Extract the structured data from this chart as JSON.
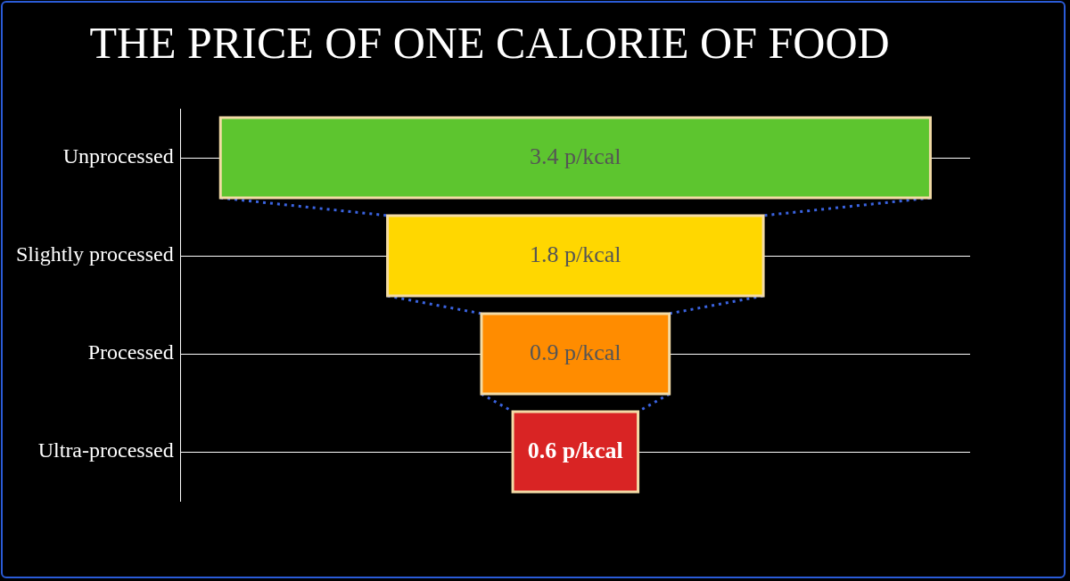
{
  "chart_data": {
    "type": "other",
    "title": "THE PRICE OF ONE CALORIE OF FOOD",
    "categories": [
      "Unprocessed",
      "Slightly processed",
      "Processed",
      "Ultra-processed"
    ],
    "values": [
      3.4,
      1.8,
      0.9,
      0.6
    ],
    "colors": [
      "#5dc52f",
      "#ffd700",
      "#ff8c00",
      "#d92424"
    ],
    "value_labels": [
      "3.4 p/kcal",
      "1.8 p/kcal",
      "0.9 p/kcal",
      "0.6 p/kcal"
    ]
  }
}
